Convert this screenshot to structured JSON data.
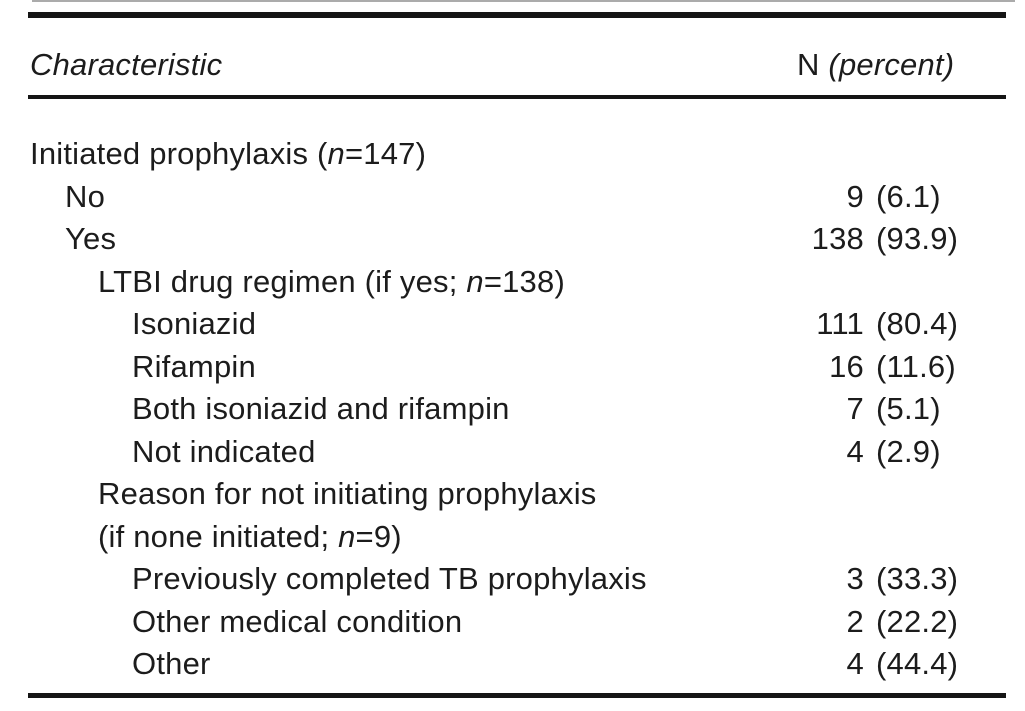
{
  "table": {
    "header": {
      "characteristic": "Characteristic",
      "n_label": "N",
      "percent_label": "(percent)"
    },
    "rows": [
      {
        "indent": 0,
        "segments": [
          {
            "t": "Initiated prophylaxis (",
            "i": false
          },
          {
            "t": "n",
            "i": true
          },
          {
            "t": "=147)",
            "i": false
          }
        ],
        "count": "",
        "pct": ""
      },
      {
        "indent": 1,
        "segments": [
          {
            "t": "No",
            "i": false
          }
        ],
        "count": "9",
        "pct": "(6.1)"
      },
      {
        "indent": 1,
        "segments": [
          {
            "t": "Yes",
            "i": false
          }
        ],
        "count": "138",
        "pct": "(93.9)"
      },
      {
        "indent": 2,
        "segments": [
          {
            "t": "LTBI drug regimen (if yes; ",
            "i": false
          },
          {
            "t": "n",
            "i": true
          },
          {
            "t": "=138)",
            "i": false
          }
        ],
        "count": "",
        "pct": ""
      },
      {
        "indent": 3,
        "segments": [
          {
            "t": "Isoniazid",
            "i": false
          }
        ],
        "count": "111",
        "pct": "(80.4)"
      },
      {
        "indent": 3,
        "segments": [
          {
            "t": "Rifampin",
            "i": false
          }
        ],
        "count": "16",
        "pct": "(11.6)"
      },
      {
        "indent": 3,
        "segments": [
          {
            "t": "Both isoniazid and rifampin",
            "i": false
          }
        ],
        "count": "7",
        "pct": "(5.1)"
      },
      {
        "indent": 3,
        "segments": [
          {
            "t": "Not indicated",
            "i": false
          }
        ],
        "count": "4",
        "pct": "(2.9)"
      },
      {
        "indent": 2,
        "segments": [
          {
            "t": "Reason for not initiating prophylaxis",
            "i": false
          }
        ],
        "count": "",
        "pct": ""
      },
      {
        "indent": 2,
        "segments": [
          {
            "t": "(if none initiated; ",
            "i": false
          },
          {
            "t": "n",
            "i": true
          },
          {
            "t": "=9)",
            "i": false
          }
        ],
        "count": "",
        "pct": ""
      },
      {
        "indent": 3,
        "segments": [
          {
            "t": "Previously completed TB prophylaxis",
            "i": false
          }
        ],
        "count": "3",
        "pct": "(33.3)"
      },
      {
        "indent": 3,
        "segments": [
          {
            "t": "Other medical condition",
            "i": false
          }
        ],
        "count": "2",
        "pct": "(22.2)"
      },
      {
        "indent": 3,
        "segments": [
          {
            "t": "Other",
            "i": false
          }
        ],
        "count": "4",
        "pct": "(44.4)"
      }
    ]
  },
  "colors": {
    "text": "#1c1c1c",
    "rule": "#151515",
    "background": "#ffffff",
    "top_artifact_line": "#ababab"
  }
}
